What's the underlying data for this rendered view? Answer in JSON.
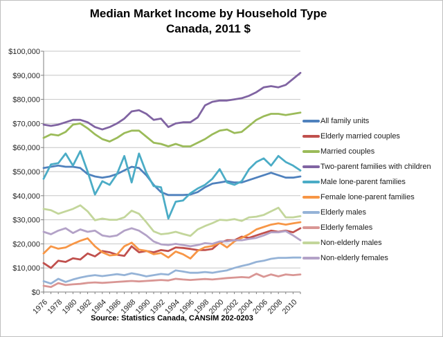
{
  "title": {
    "line1": "Median Market Income by Household Type",
    "line2": "Canada, 2011 $"
  },
  "source": "Source: Statistics Canada, CANSIM 202-0203",
  "axis_colors": {
    "gridline": "#c6c6c6",
    "axis": "#7f7f7f"
  },
  "chart_data": {
    "type": "line",
    "title": "Median Market Income by Household Type Canada, 2011 $",
    "xlabel": "",
    "ylabel": "",
    "xlim": [
      1976,
      2011
    ],
    "ylim": [
      0,
      100000
    ],
    "grid": "horizontal",
    "legend_position": "right",
    "x": [
      1976,
      1977,
      1978,
      1979,
      1980,
      1981,
      1982,
      1983,
      1984,
      1985,
      1986,
      1987,
      1988,
      1989,
      1990,
      1991,
      1992,
      1993,
      1994,
      1995,
      1996,
      1997,
      1998,
      1999,
      2000,
      2001,
      2002,
      2003,
      2004,
      2005,
      2006,
      2007,
      2008,
      2009,
      2010,
      2011
    ],
    "x_tick_years": [
      1976,
      1978,
      1980,
      1982,
      1984,
      1986,
      1988,
      1990,
      1992,
      1994,
      1996,
      1998,
      2000,
      2002,
      2004,
      2006,
      2008,
      2010
    ],
    "x_tick_labels": [
      "1976",
      "1978",
      "1980",
      "1982",
      "1984",
      "1986",
      "1988",
      "1990",
      "1992",
      "1994",
      "1996",
      "1998",
      "2000",
      "2002",
      "2004",
      "2006",
      "2008",
      "2010"
    ],
    "y_ticks": [
      0,
      10000,
      20000,
      30000,
      40000,
      50000,
      60000,
      70000,
      80000,
      90000,
      100000
    ],
    "y_tick_labels": [
      "$0",
      "$10,000",
      "$20,000",
      "$30,000",
      "$40,000",
      "$50,000",
      "$60,000",
      "$70,000",
      "$80,000",
      "$90,000",
      "$100,000"
    ],
    "series": [
      {
        "name": "All family units",
        "color": "#4F81BD",
        "values": [
          51500,
          52000,
          52500,
          52000,
          52000,
          51500,
          49000,
          48000,
          47500,
          48000,
          49000,
          50500,
          52000,
          51500,
          48500,
          44500,
          41500,
          40300,
          40300,
          40300,
          40500,
          41500,
          43500,
          45000,
          45500,
          46000,
          45500,
          45500,
          46500,
          47500,
          48500,
          49500,
          48500,
          47500,
          47500,
          48000
        ]
      },
      {
        "name": "Elderly married couples",
        "color": "#C0504D",
        "values": [
          12000,
          10000,
          13000,
          12500,
          14000,
          13500,
          16000,
          14800,
          17000,
          16500,
          15500,
          15000,
          19000,
          16500,
          17000,
          16500,
          17400,
          17000,
          18500,
          18300,
          17900,
          17400,
          17400,
          17900,
          20500,
          21500,
          21500,
          23000,
          22500,
          23500,
          24500,
          25500,
          25000,
          25500,
          24800,
          26500
        ]
      },
      {
        "name": "Married couples",
        "color": "#9BBB59",
        "values": [
          64000,
          65500,
          65000,
          66500,
          69500,
          70000,
          68000,
          65500,
          63500,
          62500,
          64000,
          66000,
          67000,
          67000,
          64500,
          62000,
          61500,
          60500,
          61500,
          60500,
          60500,
          62000,
          63500,
          65500,
          67000,
          67500,
          66000,
          66500,
          69000,
          71500,
          73000,
          74000,
          74000,
          73500,
          74000,
          74500
        ]
      },
      {
        "name": "Two-parent families with children",
        "color": "#8064A2",
        "values": [
          69500,
          69000,
          69500,
          70500,
          71500,
          71500,
          70500,
          68500,
          67500,
          68500,
          70000,
          72000,
          75000,
          75500,
          74000,
          71500,
          72000,
          68500,
          70000,
          70500,
          70500,
          72500,
          77500,
          79000,
          79500,
          79500,
          80000,
          80500,
          81500,
          83000,
          85000,
          85500,
          85000,
          86000,
          88500,
          91000
        ]
      },
      {
        "name": "Male lone-parent families",
        "color": "#4BACC6",
        "values": [
          47000,
          53000,
          53500,
          57500,
          52500,
          58500,
          50000,
          40500,
          46000,
          44500,
          49000,
          56500,
          45500,
          57500,
          49500,
          44000,
          43500,
          30500,
          37500,
          38000,
          41000,
          43000,
          44500,
          47000,
          51000,
          45500,
          44500,
          46000,
          51000,
          54000,
          55500,
          52500,
          56500,
          54000,
          52500,
          50500
        ]
      },
      {
        "name": "Female lone-parent families",
        "color": "#F79646",
        "values": [
          16000,
          19000,
          18000,
          18500,
          20000,
          21300,
          22300,
          19000,
          16500,
          15200,
          15500,
          19000,
          20500,
          17600,
          17100,
          15700,
          16200,
          14300,
          16800,
          15700,
          13900,
          17100,
          18600,
          19100,
          20500,
          18500,
          21000,
          22500,
          24000,
          26000,
          27000,
          28000,
          28500,
          28000,
          28500,
          29000
        ]
      },
      {
        "name": "Elderly males",
        "color": "#95B3D7",
        "values": [
          4500,
          3500,
          5500,
          4200,
          5200,
          6000,
          6600,
          7000,
          6600,
          7000,
          7400,
          7000,
          7800,
          7200,
          6500,
          7000,
          7500,
          7200,
          9000,
          8500,
          8000,
          8000,
          8300,
          8000,
          8500,
          9000,
          10000,
          10800,
          11500,
          12500,
          13000,
          13800,
          14200,
          14200,
          14300,
          14300
        ]
      },
      {
        "name": "Elderly females",
        "color": "#D99694",
        "values": [
          2600,
          2100,
          3700,
          2900,
          3200,
          3400,
          3800,
          4000,
          3800,
          4000,
          4200,
          4400,
          4600,
          4400,
          4600,
          4800,
          5000,
          4800,
          5500,
          5200,
          5000,
          5200,
          5400,
          5200,
          5500,
          5800,
          6000,
          6200,
          6000,
          7600,
          6300,
          7300,
          6500,
          7300,
          7000,
          7300
        ]
      },
      {
        "name": "Non-elderly males",
        "color": "#C3D69B",
        "values": [
          34500,
          34000,
          32500,
          33500,
          34500,
          36000,
          33500,
          29800,
          30500,
          30000,
          30000,
          31000,
          33800,
          32500,
          29000,
          25200,
          24000,
          24300,
          25000,
          24100,
          23300,
          26000,
          27400,
          28600,
          30000,
          29800,
          30300,
          29500,
          31000,
          31300,
          32000,
          33500,
          35000,
          31000,
          31000,
          31500
        ]
      },
      {
        "name": "Non-elderly females",
        "color": "#B3A2C7",
        "values": [
          25000,
          24000,
          25500,
          26500,
          24500,
          26000,
          25000,
          25500,
          23500,
          23000,
          23500,
          25500,
          26500,
          25500,
          23500,
          21000,
          19800,
          19500,
          20000,
          19500,
          19000,
          19500,
          20300,
          20000,
          21000,
          21000,
          21500,
          21500,
          22000,
          22500,
          23500,
          24800,
          24800,
          25300,
          23500,
          21500
        ]
      }
    ]
  }
}
